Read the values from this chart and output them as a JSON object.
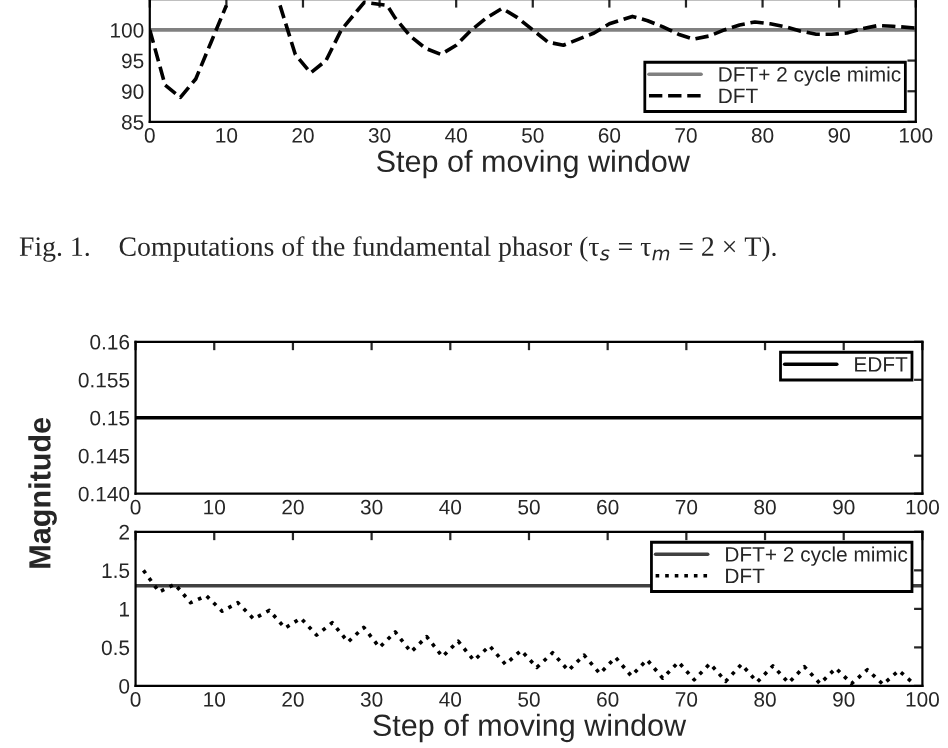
{
  "chart_data": [
    {
      "type": "line",
      "xlabel": "Step of moving window",
      "xlim": [
        0,
        100
      ],
      "xticks": [
        0,
        10,
        20,
        30,
        40,
        50,
        60,
        70,
        80,
        90,
        100
      ],
      "ylim": [
        85,
        105
      ],
      "yticks": [
        85,
        90,
        95,
        100
      ],
      "legend": "bottom right",
      "annotations": [
        "Fig. 1.    Computations of the fundamental phasor (τ$_{s}$ = τ$_{m}$ = 2 × T)."
      ],
      "series": [
        {
          "name": "DFT+ 2 cycle mimic",
          "color": "#808080",
          "line_style": "solid",
          "x": [
            0,
            100
          ],
          "values": [
            100,
            100
          ]
        },
        {
          "name": "DFT",
          "color": "#000000",
          "line_style": "dashed",
          "x": [
            0,
            2,
            4,
            6,
            8,
            10,
            11,
            17,
            19,
            21,
            23,
            25,
            27,
            28,
            31,
            32,
            34,
            36,
            38,
            40,
            42,
            44,
            46,
            48,
            50,
            52,
            54,
            56,
            58,
            60,
            63,
            65,
            67,
            69,
            71,
            73,
            75,
            77,
            79,
            81,
            83,
            85,
            87,
            89,
            91,
            93,
            95,
            97,
            100
          ],
          "values": [
            100,
            91,
            89,
            92,
            98,
            104,
            null,
            104,
            96,
            93,
            95,
            100,
            103,
            104.5,
            104,
            102,
            99,
            97,
            96,
            97.5,
            100,
            102,
            103.5,
            102,
            100,
            98,
            97.5,
            98.5,
            99.5,
            101,
            102.2,
            101.5,
            100.5,
            99.3,
            98.5,
            99,
            100,
            100.8,
            101.3,
            101,
            100.5,
            99.8,
            99.3,
            99.3,
            99.5,
            100.2,
            100.7,
            100.6,
            100.3
          ]
        }
      ]
    },
    {
      "type": "line",
      "xlim": [
        0,
        100
      ],
      "xticks": [
        0,
        10,
        20,
        30,
        40,
        50,
        60,
        70,
        80,
        90,
        100
      ],
      "ylim": [
        0.14,
        0.16
      ],
      "yticks": [
        {
          "value": 0.14,
          "label": "0.140"
        },
        0.145,
        0.15,
        0.155,
        0.16
      ],
      "legend": "top right",
      "series": [
        {
          "name": "EDFT",
          "color": "#000000",
          "line_style": "solid",
          "x": [
            0,
            100
          ],
          "values": [
            0.15,
            0.15
          ]
        }
      ]
    },
    {
      "type": "line",
      "xlabel": "Step of moving window",
      "ylabel": "Magnitude",
      "xlim": [
        0,
        100
      ],
      "xticks": [
        0,
        10,
        20,
        30,
        40,
        50,
        60,
        70,
        80,
        90,
        100
      ],
      "ylim": [
        0,
        2
      ],
      "yticks": [
        0,
        0.5,
        1,
        1.5,
        2
      ],
      "legend": "top right",
      "series": [
        {
          "name": "DFT+ 2 cycle mimic",
          "color": "#404040",
          "line_style": "solid",
          "x": [
            0,
            100
          ],
          "values": [
            1.3,
            1.3
          ]
        },
        {
          "name": "DFT",
          "color": "#000000",
          "line_style": "dotted",
          "x": [
            1,
            3,
            5,
            7,
            9,
            11,
            13,
            15,
            17,
            19,
            21,
            23,
            25,
            27,
            29,
            31,
            33,
            35,
            37,
            39,
            41,
            43,
            45,
            47,
            49,
            51,
            53,
            55,
            57,
            59,
            61,
            63,
            65,
            67,
            69,
            71,
            73,
            75,
            77,
            79,
            81,
            83,
            85,
            87,
            89,
            91,
            93,
            95,
            97,
            99
          ],
          "values": [
            1.5,
            1.22,
            1.32,
            1.08,
            1.17,
            0.97,
            1.08,
            0.87,
            0.98,
            0.75,
            0.88,
            0.66,
            0.82,
            0.57,
            0.76,
            0.5,
            0.7,
            0.44,
            0.64,
            0.38,
            0.58,
            0.33,
            0.52,
            0.28,
            0.46,
            0.24,
            0.43,
            0.2,
            0.4,
            0.16,
            0.37,
            0.13,
            0.34,
            0.1,
            0.31,
            0.08,
            0.29,
            0.06,
            0.28,
            0.05,
            0.26,
            0.04,
            0.25,
            0.03,
            0.23,
            0.03,
            0.21,
            0.02,
            0.2,
            0.02
          ]
        }
      ]
    }
  ]
}
